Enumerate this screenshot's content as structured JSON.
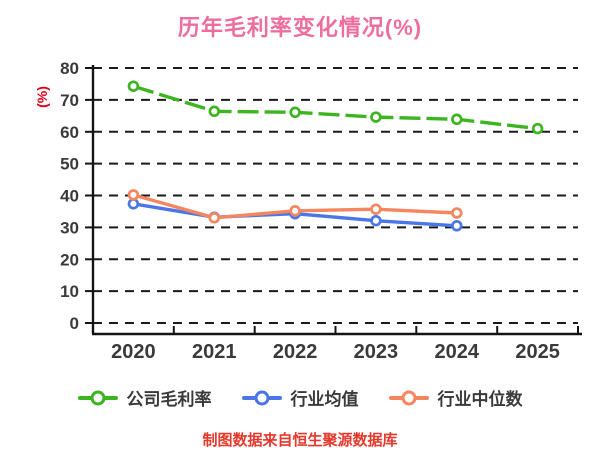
{
  "title": "历年毛利率变化情况(%)",
  "source_note": "制图数据来自恒生聚源数据库",
  "colors": {
    "background": "#ffffff",
    "title": "#ed6d9d",
    "axis": "#141414",
    "grid": "#1a1a1a",
    "tick_label": "#3a3a3a",
    "ylabel": "#e60012",
    "source_note": "#e5382c",
    "legend_text": "#3a3a3a"
  },
  "chart_data": {
    "type": "line",
    "title": "历年毛利率变化情况(%)",
    "xlabel": "",
    "ylabel": "(%)",
    "categories": [
      "2020",
      "2021",
      "2022",
      "2023",
      "2024",
      "2025"
    ],
    "ylim": [
      0,
      80
    ],
    "ytick_step": 10,
    "grid": "horizontal-dashed",
    "legend_position": "bottom",
    "series": [
      {
        "key": "company-gross-margin",
        "name": "公司毛利率",
        "color": "#3cb521",
        "line_style": "dashed",
        "marker": "circle-white-fill",
        "values": [
          74.3,
          66.4,
          66.1,
          64.6,
          63.9,
          61.0
        ]
      },
      {
        "key": "industry-average",
        "name": "行业均值",
        "color": "#4a76e8",
        "line_style": "solid",
        "marker": "circle-white-fill",
        "values": [
          37.4,
          33.2,
          34.3,
          32.1,
          30.5,
          null
        ]
      },
      {
        "key": "industry-median",
        "name": "行业中位数",
        "color": "#f4875f",
        "line_style": "solid",
        "marker": "circle-white-fill",
        "values": [
          40.2,
          33.0,
          35.2,
          35.7,
          34.5,
          null
        ]
      }
    ]
  }
}
